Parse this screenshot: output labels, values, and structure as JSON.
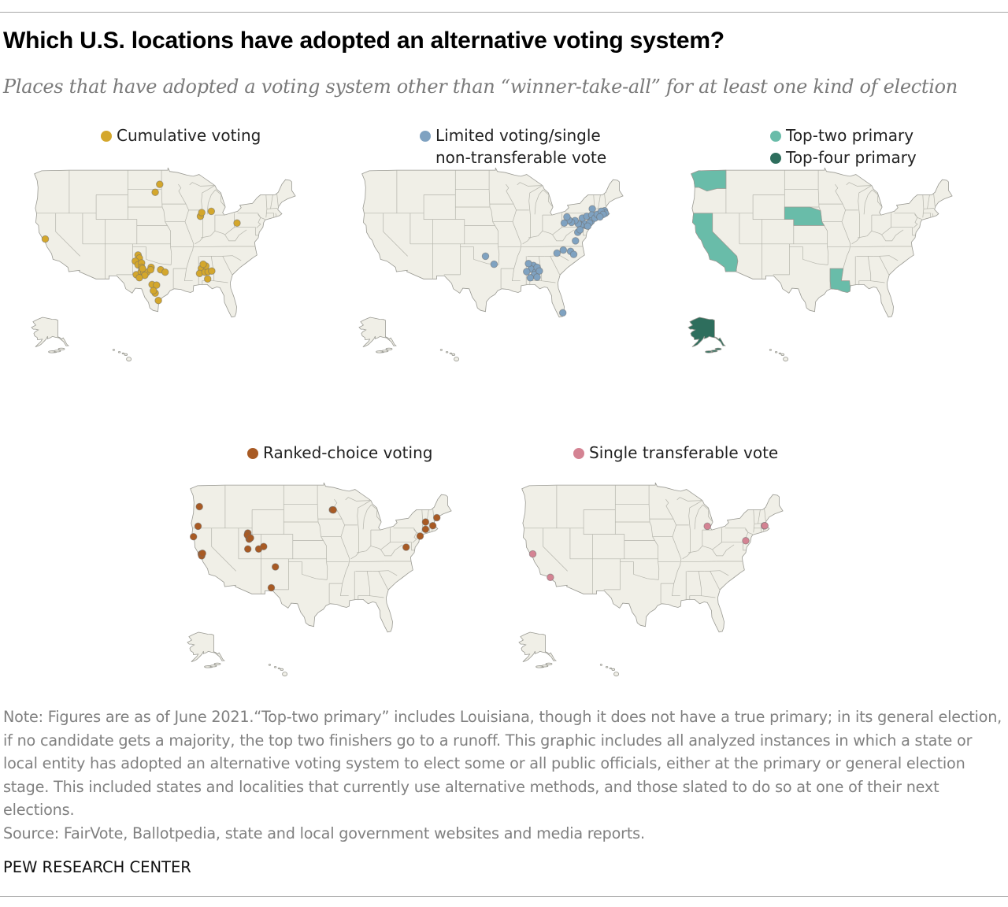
{
  "title": "Which U.S. locations have adopted an alternative voting system?",
  "subtitle": "Places that have adopted a voting system other than “winner-take-all” for at least one kind of election",
  "colors": {
    "cumulative": "#d4a72c",
    "limited": "#7fa2c1",
    "top_two": "#69bca9",
    "top_four": "#2e6e5d",
    "ranked": "#a85a24",
    "stv": "#d48393",
    "land": "#f0efe7",
    "border": "#9a9a93"
  },
  "legends": {
    "cumulative": {
      "lines": [
        "Cumulative voting"
      ]
    },
    "limited": {
      "lines": [
        "Limited voting/single",
        "non-transferable vote"
      ]
    },
    "primary": {
      "top_two": "Top-two primary",
      "top_four": "Top-four primary"
    },
    "ranked": {
      "lines": [
        "Ranked-choice voting"
      ]
    },
    "stv": {
      "lines": [
        "Single transferable vote"
      ]
    }
  },
  "maps": [
    {
      "id": "cumulative",
      "marker_color": "cumulative",
      "points": [
        [
          -79.9,
          40.4
        ],
        [
          -85.6,
          42.3
        ],
        [
          -88.0,
          41.5
        ],
        [
          -87.7,
          42.1
        ],
        [
          -97.0,
          46.7
        ],
        [
          -98.0,
          45.4
        ],
        [
          -122.3,
          37.8
        ],
        [
          -87.8,
          33.0
        ],
        [
          -101.8,
          35.2
        ],
        [
          -101.5,
          34.7
        ],
        [
          -102.4,
          34.2
        ],
        [
          -101.8,
          33.6
        ],
        [
          -101.0,
          33.9
        ],
        [
          -102.2,
          32.0
        ],
        [
          -101.1,
          32.5
        ],
        [
          -100.5,
          32.4
        ],
        [
          -99.8,
          32.4
        ],
        [
          -100.3,
          31.9
        ],
        [
          -101.5,
          31.5
        ],
        [
          -98.7,
          30.4
        ],
        [
          -97.7,
          30.3
        ],
        [
          -96.8,
          32.8
        ],
        [
          -95.8,
          32.4
        ],
        [
          -98.0,
          29.0
        ],
        [
          -97.3,
          27.8
        ],
        [
          -98.4,
          29.4
        ],
        [
          -98.9,
          33.2
        ],
        [
          -99.0,
          32.8
        ],
        [
          -101.0,
          33.2
        ],
        [
          -100.8,
          33.0
        ],
        [
          -88.2,
          32.2
        ],
        [
          -87.0,
          32.4
        ],
        [
          -86.3,
          32.5
        ],
        [
          -86.8,
          33.4
        ],
        [
          -85.5,
          32.6
        ],
        [
          -86.4,
          31.3
        ],
        [
          -87.4,
          33.7
        ]
      ]
    },
    {
      "id": "limited",
      "marker_color": "limited",
      "points": [
        [
          -75.2,
          40.0
        ],
        [
          -75.6,
          40.3
        ],
        [
          -76.3,
          40.0
        ],
        [
          -76.9,
          40.3
        ],
        [
          -77.6,
          40.8
        ],
        [
          -78.4,
          40.5
        ],
        [
          -79.0,
          40.9
        ],
        [
          -80.0,
          40.4
        ],
        [
          -79.4,
          41.4
        ],
        [
          -76.0,
          41.2
        ],
        [
          -75.0,
          41.5
        ],
        [
          -73.8,
          42.7
        ],
        [
          -73.9,
          41.7
        ],
        [
          -74.0,
          40.7
        ],
        [
          -73.2,
          41.2
        ],
        [
          -72.7,
          41.8
        ],
        [
          -71.1,
          42.4
        ],
        [
          -70.9,
          42.0
        ],
        [
          -71.8,
          42.3
        ],
        [
          -71.4,
          41.8
        ],
        [
          -72.1,
          41.4
        ],
        [
          -74.4,
          40.4
        ],
        [
          -74.8,
          39.9
        ],
        [
          -77.0,
          38.9
        ],
        [
          -76.5,
          39.3
        ],
        [
          -77.5,
          37.5
        ],
        [
          -80.2,
          36.0
        ],
        [
          -78.6,
          35.8
        ],
        [
          -77.9,
          35.3
        ],
        [
          -81.6,
          35.5
        ],
        [
          -86.8,
          33.5
        ],
        [
          -87.3,
          32.9
        ],
        [
          -86.3,
          32.4
        ],
        [
          -87.9,
          33.8
        ],
        [
          -86.0,
          33.2
        ],
        [
          -86.6,
          32.0
        ],
        [
          -88.3,
          32.5
        ],
        [
          -85.5,
          32.6
        ],
        [
          -87.5,
          31.5
        ],
        [
          -86.0,
          31.6
        ],
        [
          -97.4,
          35.0
        ],
        [
          -95.5,
          33.7
        ],
        [
          -80.3,
          25.8
        ]
      ]
    },
    {
      "id": "primary",
      "top_two_states": [
        "WA",
        "CA",
        "NE",
        "LA"
      ],
      "top_four_states": [
        "AK"
      ]
    },
    {
      "id": "ranked",
      "marker_color": "ranked",
      "points": [
        [
          -122.7,
          45.5
        ],
        [
          -123.0,
          42.3
        ],
        [
          -124.0,
          40.6
        ],
        [
          -122.3,
          37.8
        ],
        [
          -122.2,
          37.5
        ],
        [
          -122.0,
          37.9
        ],
        [
          -112.0,
          41.2
        ],
        [
          -111.9,
          40.7
        ],
        [
          -111.7,
          40.2
        ],
        [
          -112.1,
          40.9
        ],
        [
          -111.4,
          40.4
        ],
        [
          -112.0,
          38.6
        ],
        [
          -109.6,
          38.6
        ],
        [
          -108.5,
          39.0
        ],
        [
          -105.9,
          35.7
        ],
        [
          -106.8,
          32.3
        ],
        [
          -93.3,
          44.98
        ],
        [
          -93.1,
          44.95
        ],
        [
          -70.2,
          43.7
        ],
        [
          -71.1,
          42.4
        ],
        [
          -73.9,
          40.7
        ],
        [
          -72.7,
          41.8
        ],
        [
          -77.0,
          38.9
        ],
        [
          -72.7,
          43.0
        ]
      ]
    },
    {
      "id": "stv",
      "marker_color": "stv",
      "points": [
        [
          -122.3,
          37.8
        ],
        [
          -118.4,
          34.0
        ],
        [
          -83.7,
          42.3
        ],
        [
          -71.1,
          42.37
        ],
        [
          -71.0,
          42.4
        ],
        [
          -75.2,
          39.95
        ]
      ]
    }
  ],
  "note": "Note: Figures are as of June 2021.“Top-two primary” includes Louisiana, though it does not have a true primary; in its general election, if no candidate gets a majority, the top two finishers go to a runoff. This graphic includes all analyzed instances in which a state or local entity has adopted an alternative voting system to elect some or all public officials, either at the primary or general election stage. This included states and localities that currently use alternative methods, and those slated to do so at one of their next elections.",
  "source": "Source: FairVote, Ballotpedia, state and local government websites and media reports.",
  "brand": "PEW RESEARCH CENTER"
}
